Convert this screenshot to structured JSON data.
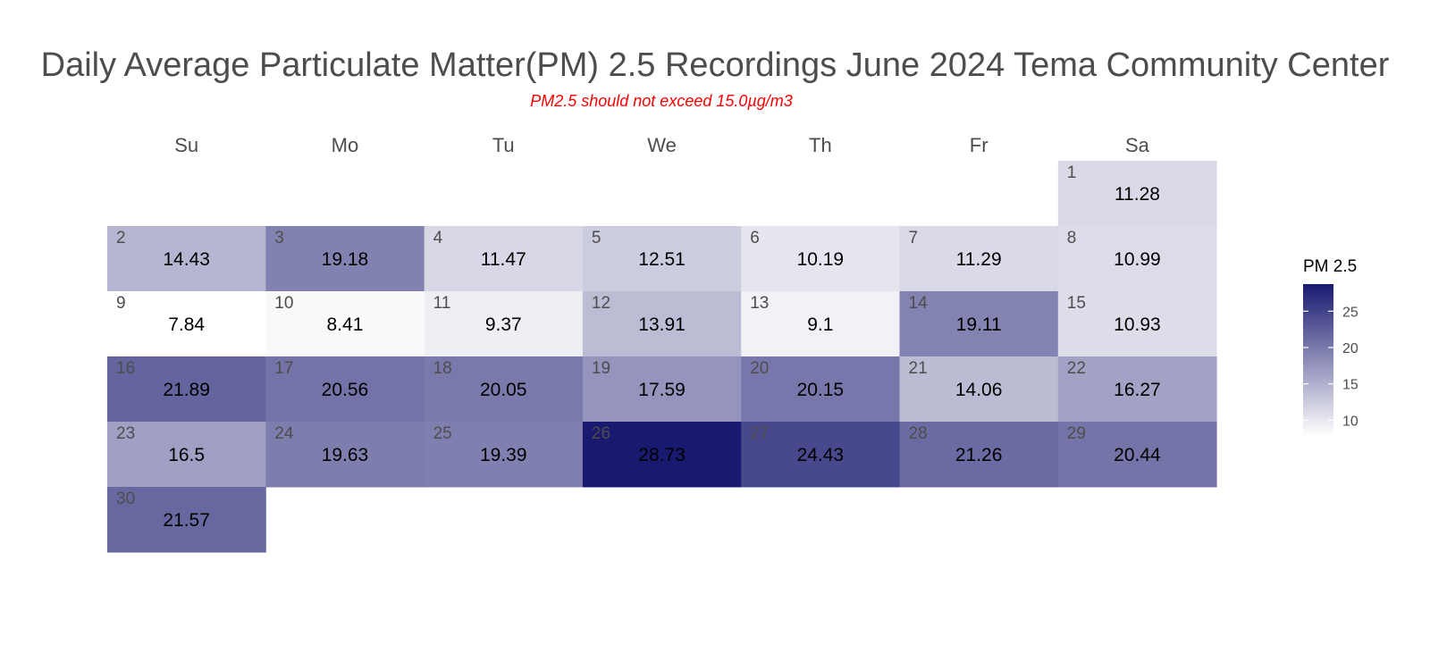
{
  "chart_data": {
    "type": "heatmap",
    "title": "Daily Average Particulate Matter(PM) 2.5 Recordings June 2024 Tema Community Center",
    "subtitle": "PM2.5 should not exceed 15.0µg/m3",
    "weekdays": [
      "Su",
      "Mo",
      "Tu",
      "We",
      "Th",
      "Fr",
      "Sa"
    ],
    "first_weekday_index": 6,
    "days": [
      1,
      2,
      3,
      4,
      5,
      6,
      7,
      8,
      9,
      10,
      11,
      12,
      13,
      14,
      15,
      16,
      17,
      18,
      19,
      20,
      21,
      22,
      23,
      24,
      25,
      26,
      27,
      28,
      29,
      30
    ],
    "values": [
      11.28,
      14.43,
      19.18,
      11.47,
      12.51,
      10.19,
      11.29,
      10.99,
      7.84,
      8.41,
      9.37,
      13.91,
      9.1,
      19.11,
      10.93,
      21.89,
      20.56,
      20.05,
      17.59,
      20.15,
      14.06,
      16.27,
      16.5,
      19.63,
      19.39,
      28.73,
      24.43,
      21.26,
      20.44,
      21.57
    ],
    "legend": {
      "title": "PM 2.5",
      "ticks": [
        10,
        15,
        20,
        25
      ],
      "range": [
        7.84,
        28.73
      ],
      "position": "right"
    },
    "color_low": "#ffffff",
    "color_high": "#191970"
  }
}
